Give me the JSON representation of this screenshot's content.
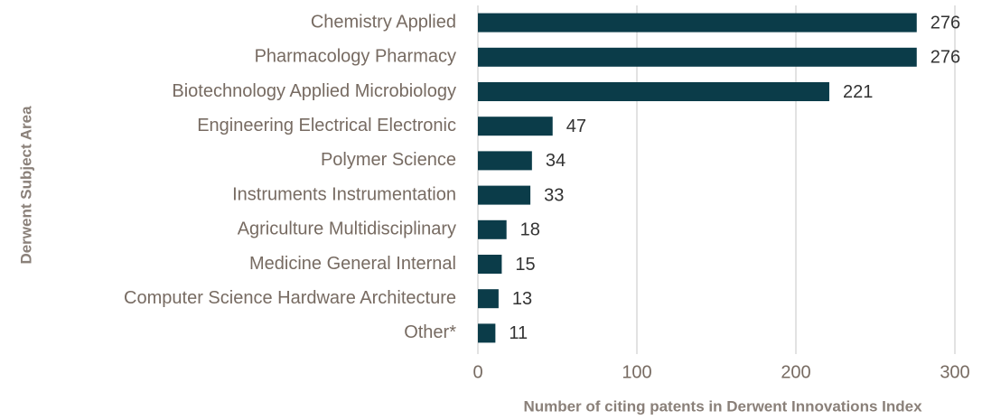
{
  "chart_data": {
    "type": "bar",
    "orientation": "horizontal",
    "categories": [
      "Chemistry Applied",
      "Pharmacology Pharmacy",
      "Biotechnology Applied Microbiology",
      "Engineering Electrical Electronic",
      "Polymer Science",
      "Instruments Instrumentation",
      "Agriculture Multidisciplinary",
      "Medicine General Internal",
      "Computer Science Hardware Architecture",
      "Other*"
    ],
    "values": [
      276,
      276,
      221,
      47,
      34,
      33,
      18,
      15,
      13,
      11
    ],
    "color": "#0b3c49",
    "xlim": [
      0,
      300
    ],
    "xticks": [
      0,
      100,
      200,
      300
    ],
    "grid": true,
    "xlabel": "Number of citing patents in Derwent Innovations Index",
    "ylabel": "Derwent Subject Area"
  }
}
